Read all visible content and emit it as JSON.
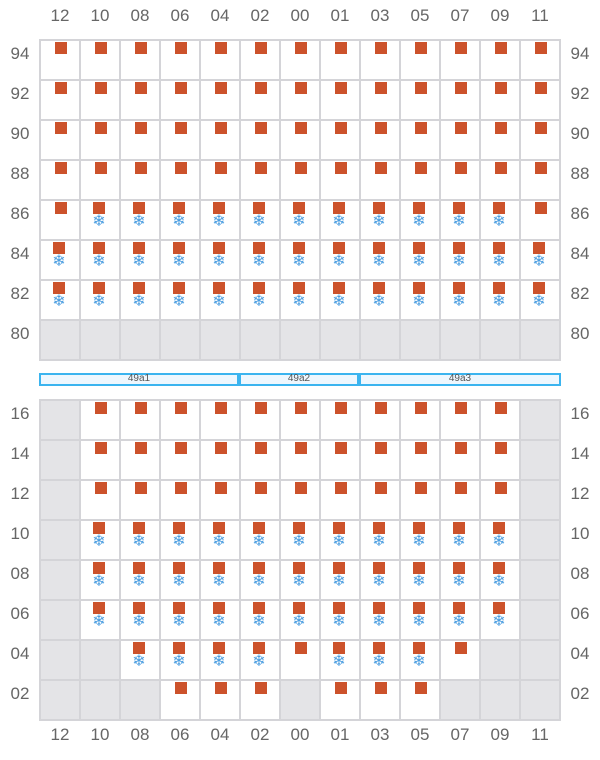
{
  "columns": [
    "12",
    "10",
    "08",
    "06",
    "04",
    "02",
    "00",
    "01",
    "03",
    "05",
    "07",
    "09",
    "11"
  ],
  "colors": {
    "seat": "#cc522b",
    "snow": "#4a9de0",
    "unavailable": "#e4e4e7",
    "section": "#3bb4ef"
  },
  "legend_codes": {
    "S": "square",
    "B": "square+snowflake",
    "G": "unavailable"
  },
  "upper": {
    "rows": [
      {
        "label": "94",
        "cells": "SSSSSSSSSSSSS"
      },
      {
        "label": "92",
        "cells": "SSSSSSSSSSSSS"
      },
      {
        "label": "90",
        "cells": "SSSSSSSSSSSSS"
      },
      {
        "label": "88",
        "cells": "SSSSSSSSSSSSS"
      },
      {
        "label": "86",
        "cells": "SBBBBBBBBBBBS"
      },
      {
        "label": "84",
        "cells": "BBBBBBBBBBBBB"
      },
      {
        "label": "82",
        "cells": "BBBBBBBBBBBBB"
      },
      {
        "label": "80",
        "cells": "GGGGGGGGGGGGG"
      }
    ]
  },
  "sections": [
    {
      "label": "49a1",
      "from": 0,
      "span": 5
    },
    {
      "label": "49a2",
      "from": 5,
      "span": 3
    },
    {
      "label": "49a3",
      "from": 8,
      "span": 5
    }
  ],
  "lower": {
    "rows": [
      {
        "label": "16",
        "cells": "GSSSSSSSSSSSG"
      },
      {
        "label": "14",
        "cells": "GSSSSSSSSSSSG"
      },
      {
        "label": "12",
        "cells": "GSSSSSSSSSSSG"
      },
      {
        "label": "10",
        "cells": "GBBBBBBBBBBBG"
      },
      {
        "label": "08",
        "cells": "GBBBBBBBBBBBG"
      },
      {
        "label": "06",
        "cells": "GBBBBBBBBBBBG"
      },
      {
        "label": "04",
        "cells": "GGBBBBSBBBSGG"
      },
      {
        "label": "02",
        "cells": "GGGSSSGSSSGGG"
      }
    ]
  }
}
